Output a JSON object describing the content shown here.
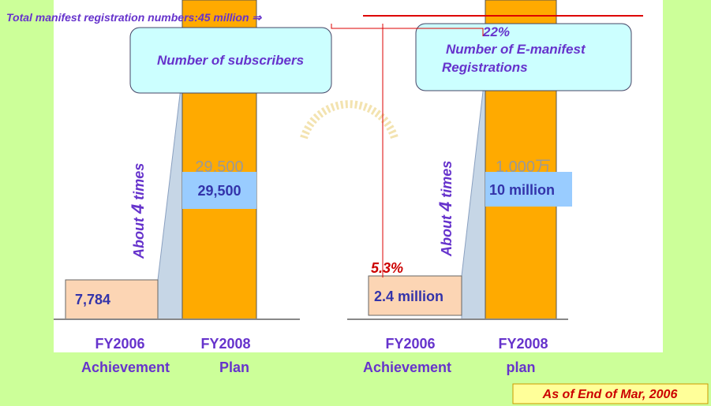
{
  "header": {
    "total": "Total manifest registration numbers:45 million ⇒"
  },
  "left": {
    "callout": "Number of subscribers",
    "ratio": {
      "prefix": "About",
      "number": "4",
      "suffix": "times"
    },
    "achievement_value": "7,784",
    "plan_value_faded": "29,500",
    "plan_value": "29,500",
    "labels": [
      {
        "year": "FY2006",
        "kind": "Achievement"
      },
      {
        "year": "FY2008",
        "kind": "Plan"
      }
    ]
  },
  "right": {
    "share_total": "22%",
    "callout": [
      "Number of E-manifest",
      "Registrations"
    ],
    "ratio": {
      "prefix": "About",
      "number": "4",
      "suffix": "times"
    },
    "achievement_share": "5.3%",
    "achievement_value": "2.4 million",
    "plan_value_faded": "1,000万",
    "plan_value": "10 million",
    "labels": [
      {
        "year": "FY2006",
        "kind": "Achievement"
      },
      {
        "year": "FY2008",
        "kind": "plan"
      }
    ]
  },
  "footnote": "As of End of Mar, 2006"
}
